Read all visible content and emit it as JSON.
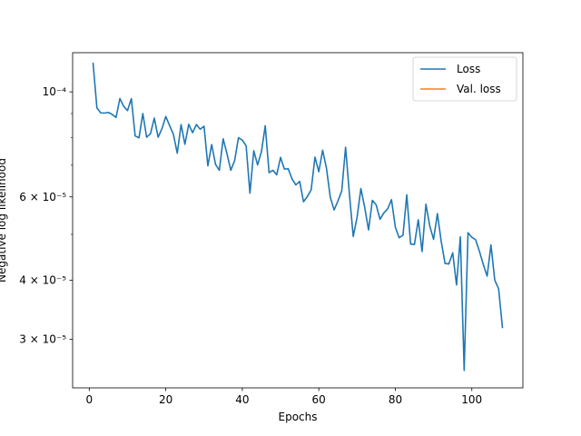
{
  "chart_data": {
    "type": "line",
    "title": "",
    "xlabel": "Epochs",
    "ylabel": "Negative log likelihood",
    "yscale": "log",
    "xlim": [
      -4.35,
      113.35
    ],
    "ylim": [
      2.37e-05,
      0.000121
    ],
    "grid": false,
    "legend_position": "top-right",
    "x_ticks": [
      {
        "value": 0,
        "label": "0"
      },
      {
        "value": 20,
        "label": "20"
      },
      {
        "value": 40,
        "label": "40"
      },
      {
        "value": 60,
        "label": "60"
      },
      {
        "value": 80,
        "label": "80"
      },
      {
        "value": 100,
        "label": "100"
      }
    ],
    "y_ticks": [
      {
        "value": 3e-05,
        "label": "3 × 10⁻⁵"
      },
      {
        "value": 4e-05,
        "label": "4 × 10⁻⁵"
      },
      {
        "value": 6e-05,
        "label": "6 × 10⁻⁵"
      },
      {
        "value": 0.0001,
        "label": "10⁻⁴"
      }
    ],
    "y_minor_ticks": [
      5e-05,
      7e-05,
      8e-05,
      9e-05
    ],
    "series": [
      {
        "name": "Loss",
        "color": "#1f77b4",
        "x": [
          1,
          2,
          3,
          4,
          5,
          6,
          7,
          8,
          9,
          10,
          11,
          12,
          13,
          14,
          15,
          16,
          17,
          18,
          19,
          20,
          21,
          22,
          23,
          24,
          25,
          26,
          27,
          28,
          29,
          30,
          31,
          32,
          33,
          34,
          35,
          36,
          37,
          38,
          39,
          40,
          41,
          42,
          43,
          44,
          45,
          46,
          47,
          48,
          49,
          50,
          51,
          52,
          53,
          54,
          55,
          56,
          57,
          58,
          59,
          60,
          61,
          62,
          63,
          64,
          65,
          66,
          67,
          68,
          69,
          70,
          71,
          72,
          73,
          74,
          75,
          76,
          77,
          78,
          79,
          80,
          81,
          82,
          83,
          84,
          85,
          86,
          87,
          88,
          89,
          90,
          91,
          92,
          93,
          94,
          95,
          96,
          97,
          98,
          99,
          100,
          101,
          102,
          103,
          104,
          105,
          106,
          107,
          108
        ],
        "y": [
          0.0001148,
          9.25e-05,
          9.03e-05,
          9.02e-05,
          9.05e-05,
          8.96e-05,
          8.83e-05,
          9.68e-05,
          9.32e-05,
          9.13e-05,
          9.68e-05,
          8.07e-05,
          8e-05,
          9e-05,
          8.02e-05,
          8.16e-05,
          8.8e-05,
          8.02e-05,
          8.36e-05,
          8.87e-05,
          8.49e-05,
          8.13e-05,
          7.42e-05,
          8.53e-05,
          7.75e-05,
          8.54e-05,
          8.2e-05,
          8.53e-05,
          8.34e-05,
          8.46e-05,
          6.98e-05,
          7.74e-05,
          7.03e-05,
          6.83e-05,
          7.96e-05,
          7.4e-05,
          6.83e-05,
          7.16e-05,
          8e-05,
          7.91e-05,
          7.69e-05,
          6.11e-05,
          7.51e-05,
          7.01e-05,
          7.47e-05,
          8.48e-05,
          6.75e-05,
          6.83e-05,
          6.68e-05,
          7.27e-05,
          6.87e-05,
          6.88e-05,
          6.55e-05,
          6.36e-05,
          6.47e-05,
          5.86e-05,
          6.01e-05,
          6.21e-05,
          7.28e-05,
          6.78e-05,
          7.53e-05,
          6.9e-05,
          5.99e-05,
          5.63e-05,
          5.88e-05,
          6.18e-05,
          7.64e-05,
          6.09e-05,
          4.95e-05,
          5.43e-05,
          6.25e-05,
          5.7e-05,
          5.11e-05,
          5.9e-05,
          5.77e-05,
          5.38e-05,
          5.55e-05,
          5.66e-05,
          5.92e-05,
          5.18e-05,
          4.92e-05,
          4.98e-05,
          6.06e-05,
          4.77e-05,
          4.76e-05,
          5.37e-05,
          4.6e-05,
          5.79e-05,
          5.21e-05,
          4.88e-05,
          5.53e-05,
          4.83e-05,
          4.34e-05,
          4.33e-05,
          4.57e-05,
          3.91e-05,
          4.94e-05,
          2.58e-05,
          5.04e-05,
          4.93e-05,
          4.87e-05,
          4.6e-05,
          4.32e-05,
          4.08e-05,
          4.75e-05,
          4e-05,
          3.84e-05,
          3.18e-05
        ]
      },
      {
        "name": "Val. loss",
        "color": "#ff7f0e",
        "x": [],
        "y": []
      }
    ]
  }
}
